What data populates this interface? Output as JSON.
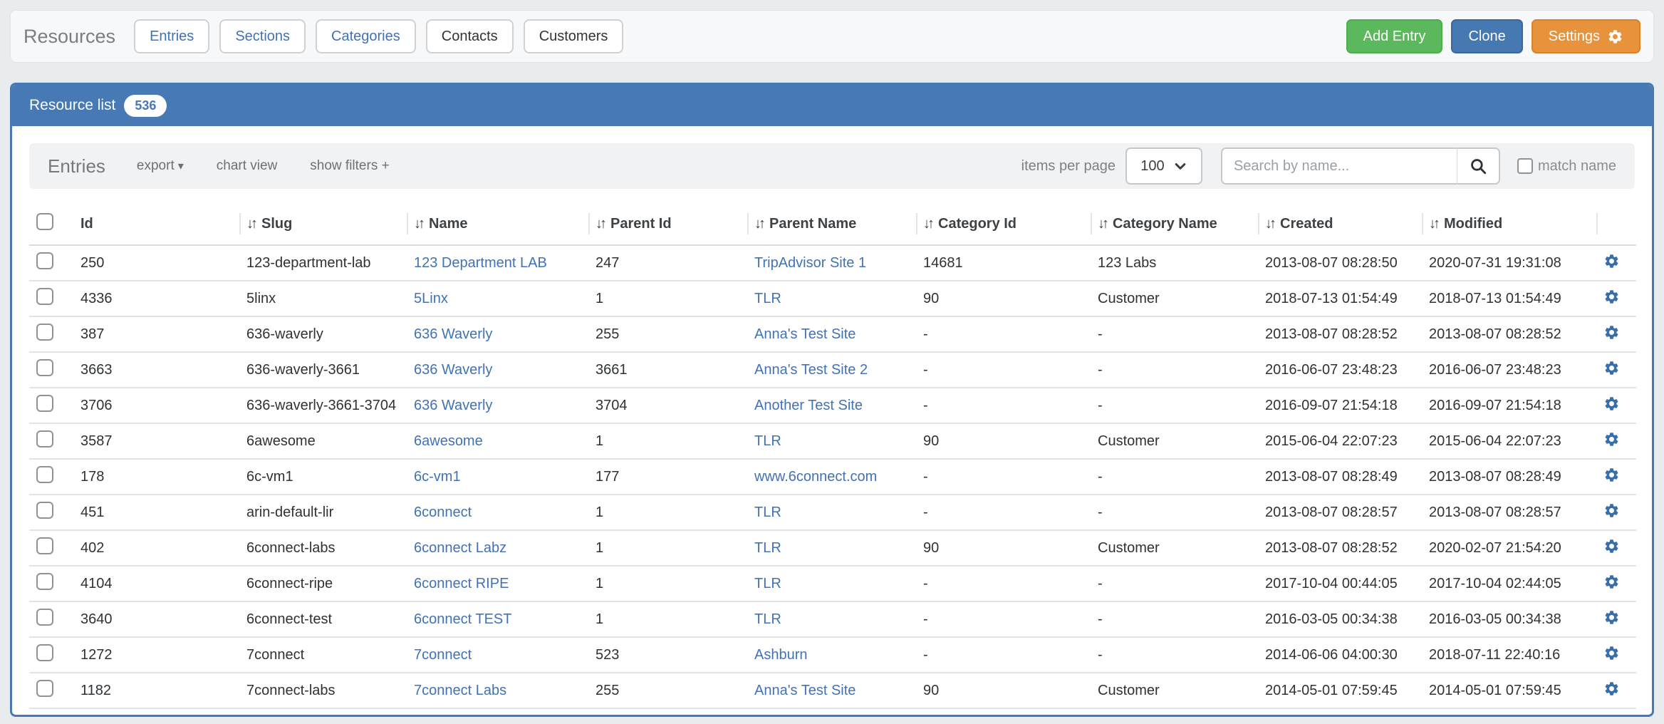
{
  "header": {
    "title": "Resources",
    "tabs": [
      {
        "label": "Entries",
        "style": "link"
      },
      {
        "label": "Sections",
        "style": "link"
      },
      {
        "label": "Categories",
        "style": "link"
      },
      {
        "label": "Contacts",
        "style": "plain"
      },
      {
        "label": "Customers",
        "style": "plain"
      }
    ],
    "actions": [
      {
        "label": "Add Entry",
        "style": "success",
        "color": "#5cb85c",
        "icon": null
      },
      {
        "label": "Clone",
        "style": "primary",
        "color": "#4678b2",
        "icon": null
      },
      {
        "label": "Settings",
        "style": "warning",
        "color": "#e8923c",
        "icon": "gear"
      }
    ]
  },
  "panel": {
    "title": "Resource list",
    "count": "536",
    "accent_color": "#4779b4"
  },
  "toolbar": {
    "title": "Entries",
    "links": [
      {
        "label": "export",
        "caret": true
      },
      {
        "label": "chart view",
        "caret": false
      },
      {
        "label": "show filters +",
        "caret": false
      }
    ],
    "items_per_page_label": "items per page",
    "items_per_page_value": "100",
    "search_placeholder": "Search by name...",
    "match_name_label": "match name",
    "match_name_checked": false
  },
  "table": {
    "link_color": "#4272b4",
    "columns": [
      {
        "label": "Id",
        "sortable": false
      },
      {
        "label": "Slug",
        "sortable": true
      },
      {
        "label": "Name",
        "sortable": true
      },
      {
        "label": "Parent Id",
        "sortable": true
      },
      {
        "label": "Parent Name",
        "sortable": true
      },
      {
        "label": "Category Id",
        "sortable": true
      },
      {
        "label": "Category Name",
        "sortable": true
      },
      {
        "label": "Created",
        "sortable": true
      },
      {
        "label": "Modified",
        "sortable": true
      }
    ],
    "rows": [
      {
        "id": "250",
        "slug": "123-department-lab",
        "name": "123 Department LAB",
        "parent_id": "247",
        "parent_name": "TripAdvisor Site 1",
        "category_id": "14681",
        "category_name": "123 Labs",
        "created": "2013-08-07 08:28:50",
        "modified": "2020-07-31 19:31:08"
      },
      {
        "id": "4336",
        "slug": "5linx",
        "name": "5Linx",
        "parent_id": "1",
        "parent_name": "TLR",
        "category_id": "90",
        "category_name": "Customer",
        "created": "2018-07-13 01:54:49",
        "modified": "2018-07-13 01:54:49"
      },
      {
        "id": "387",
        "slug": "636-waverly",
        "name": "636 Waverly",
        "parent_id": "255",
        "parent_name": "Anna's Test Site",
        "category_id": "-",
        "category_name": "-",
        "created": "2013-08-07 08:28:52",
        "modified": "2013-08-07 08:28:52"
      },
      {
        "id": "3663",
        "slug": "636-waverly-3661",
        "name": "636 Waverly",
        "parent_id": "3661",
        "parent_name": "Anna's Test Site 2",
        "category_id": "-",
        "category_name": "-",
        "created": "2016-06-07 23:48:23",
        "modified": "2016-06-07 23:48:23"
      },
      {
        "id": "3706",
        "slug": "636-waverly-3661-3704",
        "name": "636 Waverly",
        "parent_id": "3704",
        "parent_name": "Another Test Site",
        "category_id": "-",
        "category_name": "-",
        "created": "2016-09-07 21:54:18",
        "modified": "2016-09-07 21:54:18"
      },
      {
        "id": "3587",
        "slug": "6awesome",
        "name": "6awesome",
        "parent_id": "1",
        "parent_name": "TLR",
        "category_id": "90",
        "category_name": "Customer",
        "created": "2015-06-04 22:07:23",
        "modified": "2015-06-04 22:07:23"
      },
      {
        "id": "178",
        "slug": "6c-vm1",
        "name": "6c-vm1",
        "parent_id": "177",
        "parent_name": "www.6connect.com",
        "category_id": "-",
        "category_name": "-",
        "created": "2013-08-07 08:28:49",
        "modified": "2013-08-07 08:28:49"
      },
      {
        "id": "451",
        "slug": "arin-default-lir",
        "name": "6connect",
        "parent_id": "1",
        "parent_name": "TLR",
        "category_id": "-",
        "category_name": "-",
        "created": "2013-08-07 08:28:57",
        "modified": "2013-08-07 08:28:57"
      },
      {
        "id": "402",
        "slug": "6connect-labs",
        "name": "6connect Labz",
        "parent_id": "1",
        "parent_name": "TLR",
        "category_id": "90",
        "category_name": "Customer",
        "created": "2013-08-07 08:28:52",
        "modified": "2020-02-07 21:54:20"
      },
      {
        "id": "4104",
        "slug": "6connect-ripe",
        "name": "6connect RIPE",
        "parent_id": "1",
        "parent_name": "TLR",
        "category_id": "-",
        "category_name": "-",
        "created": "2017-10-04 00:44:05",
        "modified": "2017-10-04 02:44:05"
      },
      {
        "id": "3640",
        "slug": "6connect-test",
        "name": "6connect TEST",
        "parent_id": "1",
        "parent_name": "TLR",
        "category_id": "-",
        "category_name": "-",
        "created": "2016-03-05 00:34:38",
        "modified": "2016-03-05 00:34:38"
      },
      {
        "id": "1272",
        "slug": "7connect",
        "name": "7connect",
        "parent_id": "523",
        "parent_name": "Ashburn",
        "category_id": "-",
        "category_name": "-",
        "created": "2014-06-06 04:00:30",
        "modified": "2018-07-11 22:40:16"
      },
      {
        "id": "1182",
        "slug": "7connect-labs",
        "name": "7connect Labs",
        "parent_id": "255",
        "parent_name": "Anna's Test Site",
        "category_id": "90",
        "category_name": "Customer",
        "created": "2014-05-01 07:59:45",
        "modified": "2014-05-01 07:59:45"
      }
    ]
  }
}
